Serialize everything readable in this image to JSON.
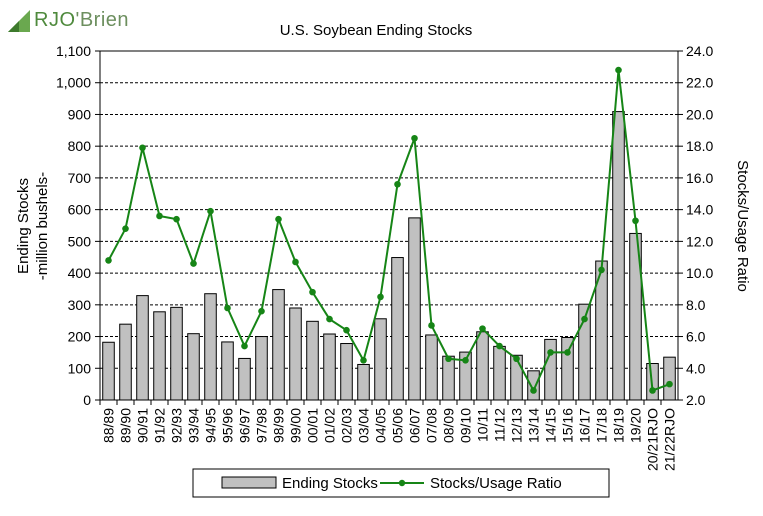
{
  "logo": {
    "text": "RJO'Brien",
    "prefix": "RJO",
    "suffix": "'Brien"
  },
  "colors": {
    "bar_fill": "#c0c0c0",
    "bar_stroke": "#000000",
    "line": "#168516",
    "grid": "#000000"
  },
  "chart_data": {
    "type": "bar",
    "title": "U.S. Soybean Ending Stocks",
    "ylabel": "Ending Stocks -million bushels-",
    "ylabel_lines": [
      "Ending Stocks",
      "-million bushels-"
    ],
    "y2label": "Stocks/Usage Ratio",
    "ylim": [
      0,
      1100
    ],
    "y_ticks": [
      0,
      100,
      200,
      300,
      400,
      500,
      600,
      700,
      800,
      900,
      1000,
      1100
    ],
    "y_tick_labels": [
      "0",
      "100",
      "200",
      "300",
      "400",
      "500",
      "600",
      "700",
      "800",
      "900",
      "1,000",
      "1,100"
    ],
    "y2lim": [
      2.0,
      24.0
    ],
    "y2_ticks": [
      2,
      4,
      6,
      8,
      10,
      12,
      14,
      16,
      18,
      20,
      22,
      24
    ],
    "y2_tick_labels": [
      "2.0",
      "4.0",
      "6.0",
      "8.0",
      "10.0",
      "12.0",
      "14.0",
      "16.0",
      "18.0",
      "20.0",
      "22.0",
      "24.0"
    ],
    "grid": true,
    "legend_position": "bottom-center",
    "categories": [
      "88/89",
      "89/90",
      "90/91",
      "91/92",
      "92/93",
      "93/94",
      "94/95",
      "95/96",
      "96/97",
      "97/98",
      "98/99",
      "99/00",
      "00/01",
      "01/02",
      "02/03",
      "03/04",
      "04/05",
      "05/06",
      "06/07",
      "07/08",
      "08/09",
      "09/10",
      "10/11",
      "11/12",
      "12/13",
      "13/14",
      "14/15",
      "15/16",
      "16/17",
      "17/18",
      "18/19",
      "19/20",
      "20/21RJO",
      "21/22RJO"
    ],
    "series": [
      {
        "name": "Ending Stocks",
        "type": "bar",
        "axis": "left",
        "values": [
          182,
          239,
          329,
          278,
          292,
          209,
          335,
          183,
          131,
          200,
          348,
          290,
          248,
          208,
          178,
          112,
          256,
          449,
          574,
          205,
          138,
          151,
          215,
          169,
          141,
          92,
          191,
          197,
          302,
          438,
          909,
          525,
          115,
          135
        ]
      },
      {
        "name": "Stocks/Usage Ratio",
        "type": "line",
        "axis": "right",
        "values": [
          10.8,
          12.8,
          17.9,
          13.6,
          13.4,
          10.6,
          13.9,
          7.8,
          5.4,
          7.6,
          13.4,
          10.7,
          8.8,
          7.1,
          6.4,
          4.5,
          8.5,
          15.6,
          18.5,
          6.7,
          4.6,
          4.5,
          6.5,
          5.4,
          4.6,
          2.6,
          5.0,
          5.0,
          7.1,
          10.2,
          22.8,
          13.3,
          2.6,
          3.0
        ]
      }
    ]
  }
}
